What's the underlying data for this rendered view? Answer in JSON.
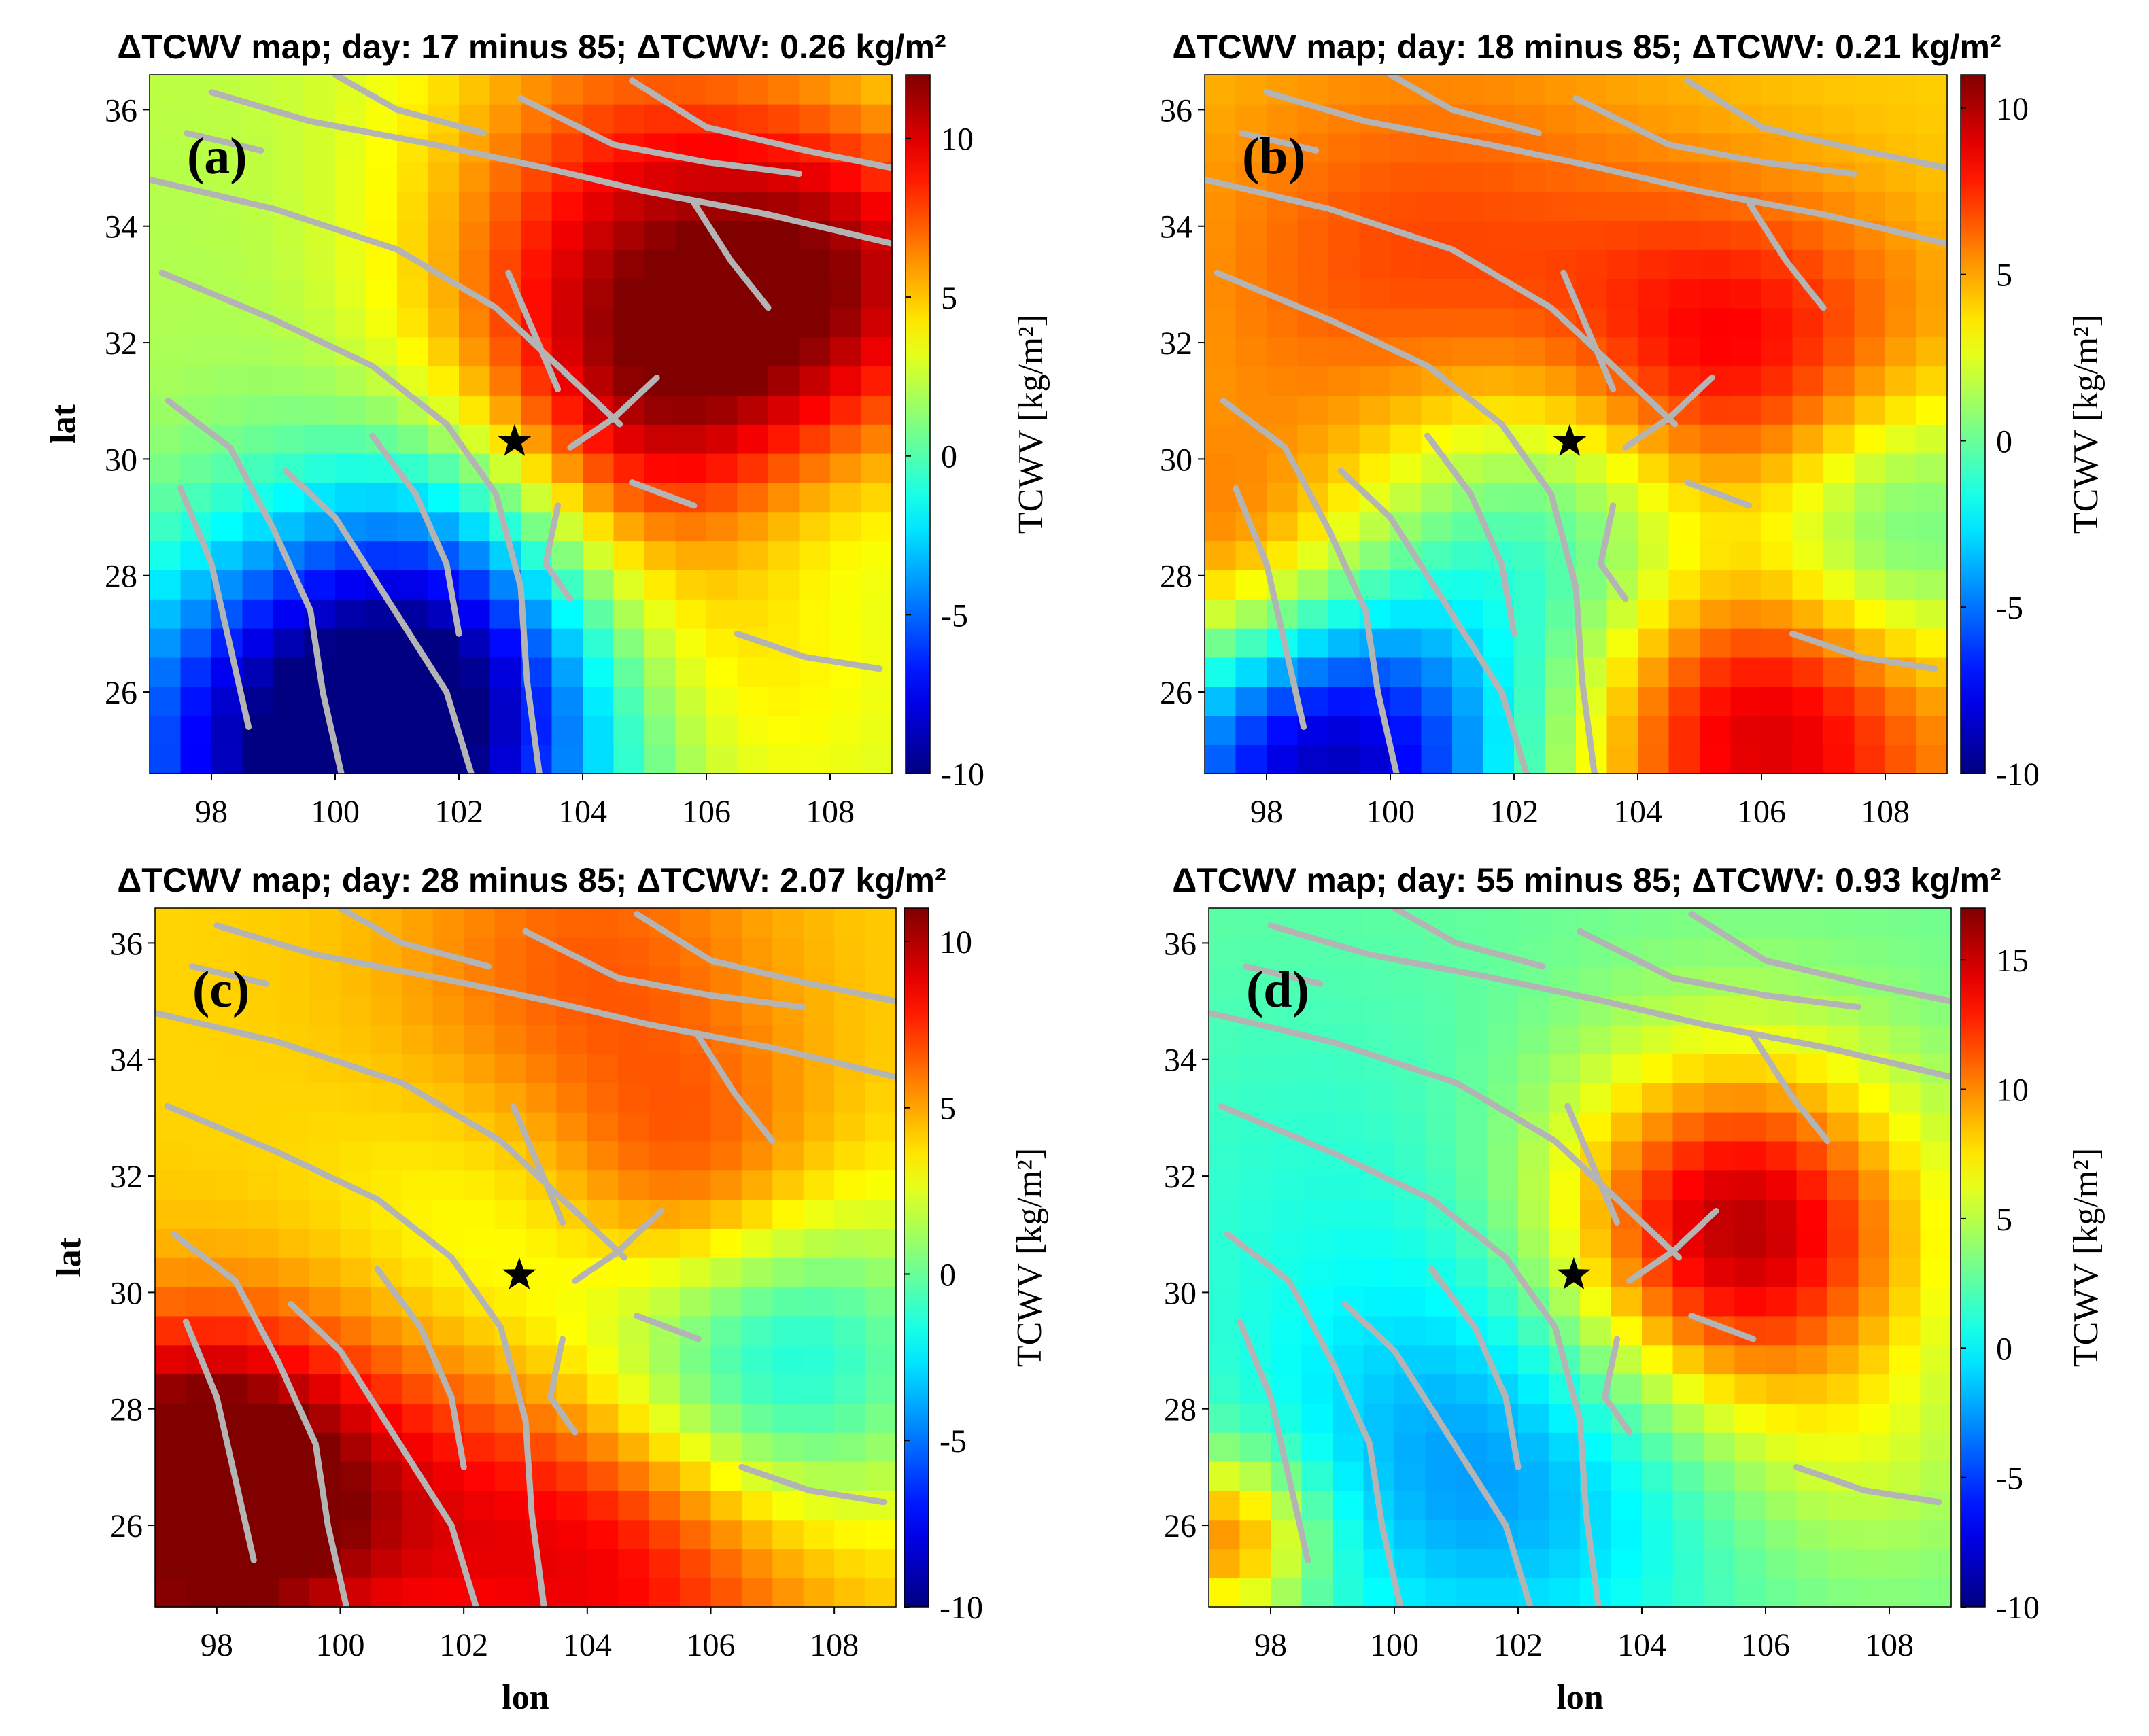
{
  "figure": {
    "colorbar_label": "TCWV [kg/m²]",
    "xlabel": "lon",
    "ylabel": "lat",
    "epicenter_marker": "star-icon",
    "fault_color": "#b4b4b4"
  },
  "chart_data": [
    {
      "type": "heatmap",
      "panel_label": "(a)",
      "title": "ΔTCWV map; day: 17 minus 85; ΔTCWV: 0.26 kg/m²",
      "xlabel": "",
      "ylabel": "lat",
      "xlim": [
        97,
        109
      ],
      "ylim": [
        24.6,
        36.6
      ],
      "x_ticks": [
        98,
        100,
        102,
        104,
        106,
        108
      ],
      "y_ticks": [
        26,
        28,
        30,
        32,
        34,
        36
      ],
      "colorbar": {
        "label": "TCWV [kg/m²]",
        "min": -10,
        "max": 12,
        "ticks": [
          -10,
          -5,
          0,
          5,
          10
        ]
      },
      "epicenter": {
        "lon": 102.9,
        "lat": 30.3
      },
      "field": {
        "base": 2.5,
        "lon_gradient": 0.0,
        "lat_gradient": 0.0,
        "blobs": [
          {
            "lon": 105.6,
            "lat": 30.9,
            "amp": 9.5,
            "r": 2.6
          },
          {
            "lon": 104.8,
            "lat": 35.2,
            "amp": 4.0,
            "r": 2.5
          },
          {
            "lon": 108.5,
            "lat": 33.5,
            "amp": 4.5,
            "r": 1.8
          },
          {
            "lon": 99.5,
            "lat": 25.0,
            "amp": -11.5,
            "r": 2.6
          },
          {
            "lon": 102.5,
            "lat": 25.6,
            "amp": -6.0,
            "r": 2.2
          },
          {
            "lon": 102.0,
            "lat": 28.6,
            "amp": -4.0,
            "r": 1.9
          },
          {
            "lon": 107.2,
            "lat": 29.0,
            "amp": -3.5,
            "r": 1.7
          },
          {
            "lon": 98.5,
            "lat": 33.5,
            "amp": -0.5,
            "r": 2.5
          },
          {
            "lon": 106.0,
            "lat": 26.2,
            "amp": 2.0,
            "r": 2.0
          }
        ]
      }
    },
    {
      "type": "heatmap",
      "panel_label": "(b)",
      "title": "ΔTCWV map; day: 18 minus 85; ΔTCWV: 0.21 kg/m²",
      "xlabel": "",
      "ylabel": "",
      "xlim": [
        97,
        109
      ],
      "ylim": [
        24.6,
        36.6
      ],
      "x_ticks": [
        98,
        100,
        102,
        104,
        106,
        108
      ],
      "y_ticks": [
        26,
        28,
        30,
        32,
        34,
        36
      ],
      "colorbar": {
        "label": "TCWV [kg/m²]",
        "min": -10,
        "max": 11,
        "ticks": [
          -10,
          -5,
          0,
          5,
          10
        ]
      },
      "epicenter": {
        "lon": 102.9,
        "lat": 30.3
      },
      "field": {
        "base": 4.0,
        "lon_gradient": 0.0,
        "lat_gradient": 0.0,
        "blobs": [
          {
            "lon": 105.7,
            "lat": 31.0,
            "amp": 6.0,
            "r": 2.2
          },
          {
            "lon": 100.5,
            "lat": 33.2,
            "amp": 3.0,
            "r": 2.8
          },
          {
            "lon": 106.0,
            "lat": 25.8,
            "amp": 6.5,
            "r": 2.1
          },
          {
            "lon": 97.5,
            "lat": 28.0,
            "amp": 4.0,
            "r": 1.6
          },
          {
            "lon": 99.0,
            "lat": 24.8,
            "amp": -13.0,
            "r": 2.4
          },
          {
            "lon": 103.5,
            "lat": 28.7,
            "amp": -5.0,
            "r": 2.0
          },
          {
            "lon": 107.8,
            "lat": 28.8,
            "amp": -6.5,
            "r": 1.9
          },
          {
            "lon": 101.8,
            "lat": 29.8,
            "amp": -1.5,
            "r": 1.8
          }
        ]
      }
    },
    {
      "type": "heatmap",
      "panel_label": "(c)",
      "title": "ΔTCWV map; day: 28 minus 85; ΔTCWV: 2.07 kg/m²",
      "xlabel": "lon",
      "ylabel": "lat",
      "xlim": [
        97,
        109
      ],
      "ylim": [
        24.6,
        36.6
      ],
      "x_ticks": [
        98,
        100,
        102,
        104,
        106,
        108
      ],
      "y_ticks": [
        26,
        28,
        30,
        32,
        34,
        36
      ],
      "colorbar": {
        "label": "TCWV [kg/m²]",
        "min": -10,
        "max": 11,
        "ticks": [
          -10,
          -5,
          0,
          5,
          10
        ]
      },
      "epicenter": {
        "lon": 102.9,
        "lat": 30.3
      },
      "field": {
        "base": 4.0,
        "lon_gradient": 0.0,
        "lat_gradient": 0.0,
        "blobs": [
          {
            "lon": 97.4,
            "lat": 26.6,
            "amp": 8.0,
            "r": 1.8
          },
          {
            "lon": 104.6,
            "lat": 25.8,
            "amp": 5.5,
            "r": 2.4
          },
          {
            "lon": 99.5,
            "lat": 26.4,
            "amp": 4.0,
            "r": 2.2
          },
          {
            "lon": 105.8,
            "lat": 31.6,
            "amp": 4.0,
            "r": 1.7
          },
          {
            "lon": 104.0,
            "lat": 35.5,
            "amp": 2.5,
            "r": 2.2
          },
          {
            "lon": 106.8,
            "lat": 28.8,
            "amp": -7.5,
            "r": 2.2
          },
          {
            "lon": 102.5,
            "lat": 30.8,
            "amp": -1.5,
            "r": 2.0
          }
        ]
      }
    },
    {
      "type": "heatmap",
      "panel_label": "(d)",
      "title": "ΔTCWV map; day: 55 minus 85; ΔTCWV: 0.93 kg/m²",
      "xlabel": "lon",
      "ylabel": "",
      "xlim": [
        97,
        109
      ],
      "ylim": [
        24.6,
        36.6
      ],
      "x_ticks": [
        98,
        100,
        102,
        104,
        106,
        108
      ],
      "y_ticks": [
        26,
        28,
        30,
        32,
        34,
        36
      ],
      "colorbar": {
        "label": "TCWV [kg/m²]",
        "min": -10,
        "max": 17,
        "ticks": [
          -10,
          -5,
          0,
          5,
          10,
          15
        ]
      },
      "epicenter": {
        "lon": 102.9,
        "lat": 30.3
      },
      "field": {
        "base": 3.0,
        "lon_gradient": 0.0,
        "lat_gradient": 0.0,
        "blobs": [
          {
            "lon": 105.5,
            "lat": 31.0,
            "amp": 13.0,
            "r": 2.1
          },
          {
            "lon": 101.6,
            "lat": 27.0,
            "amp": -5.5,
            "r": 2.6
          },
          {
            "lon": 98.5,
            "lat": 32.0,
            "amp": -1.5,
            "r": 3.0
          },
          {
            "lon": 97.3,
            "lat": 25.8,
            "amp": 8.0,
            "r": 1.0
          },
          {
            "lon": 107.5,
            "lat": 27.0,
            "amp": 2.0,
            "r": 1.6
          }
        ]
      }
    }
  ]
}
